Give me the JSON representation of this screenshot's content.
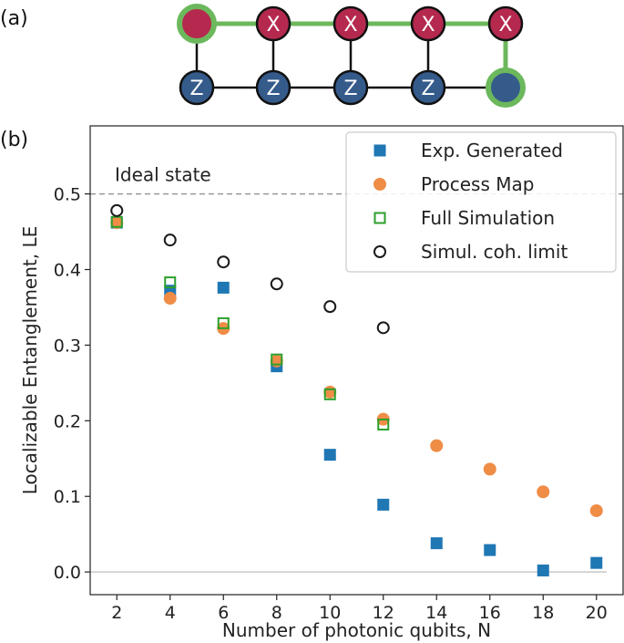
{
  "panel_a": {
    "label": "(a)",
    "top_row": [
      "",
      "X",
      "X",
      "X",
      "X"
    ],
    "bottom_row": [
      "Z",
      "Z",
      "Z",
      "Z",
      ""
    ],
    "colors": {
      "red": "#b5294f",
      "blue": "#355b8b",
      "green": "#6cb85c",
      "edge": "#111111"
    }
  },
  "panel_b": {
    "label": "(b)"
  },
  "chart_data": {
    "type": "scatter",
    "title": "",
    "xlabel": "Number of photonic qubits, N",
    "ylabel": "Localizable Entanglement, LE",
    "xlim": [
      1,
      21
    ],
    "ylim": [
      -0.03,
      0.59
    ],
    "xticks": [
      2,
      4,
      6,
      8,
      10,
      12,
      14,
      16,
      18,
      20
    ],
    "xtick_labels": [
      "2",
      "4",
      "6",
      "8",
      "10",
      "12",
      "14",
      "16",
      "18",
      "20"
    ],
    "yticks": [
      0.0,
      0.1,
      0.2,
      0.3,
      0.4,
      0.5
    ],
    "ytick_labels": [
      "0.0",
      "0.1",
      "0.2",
      "0.3",
      "0.4",
      "0.5"
    ],
    "reference_lines": [
      {
        "y": 0.5,
        "label": "Ideal state",
        "color": "#999999",
        "style": "dashed"
      },
      {
        "y": 0.0,
        "label": "",
        "color": "#c8c8c8",
        "style": "solid"
      }
    ],
    "legend_position": "top-right",
    "series": [
      {
        "name": "Exp. Generated",
        "marker": "square-filled",
        "color": "#1f77b4",
        "x": [
          2,
          4,
          6,
          8,
          10,
          12,
          14,
          16,
          18,
          20
        ],
        "y": [
          0.462,
          0.372,
          0.376,
          0.272,
          0.155,
          0.089,
          0.038,
          0.029,
          0.002,
          0.012
        ]
      },
      {
        "name": "Process Map",
        "marker": "circle-filled",
        "color": "#ef8c46",
        "x": [
          2,
          4,
          6,
          8,
          10,
          12,
          14,
          16,
          18,
          20
        ],
        "y": [
          0.462,
          0.362,
          0.322,
          0.279,
          0.238,
          0.202,
          0.167,
          0.136,
          0.106,
          0.081
        ]
      },
      {
        "name": "Full Simulation",
        "marker": "square-open",
        "color": "#2ca02c",
        "x": [
          2,
          4,
          6,
          8,
          10,
          12
        ],
        "y": [
          0.463,
          0.383,
          0.329,
          0.281,
          0.235,
          0.195
        ]
      },
      {
        "name": "Simul. coh. limit",
        "marker": "circle-open",
        "color": "#1a1a1a",
        "x": [
          2,
          4,
          6,
          8,
          10,
          12
        ],
        "y": [
          0.478,
          0.439,
          0.41,
          0.381,
          0.351,
          0.323
        ]
      }
    ]
  }
}
